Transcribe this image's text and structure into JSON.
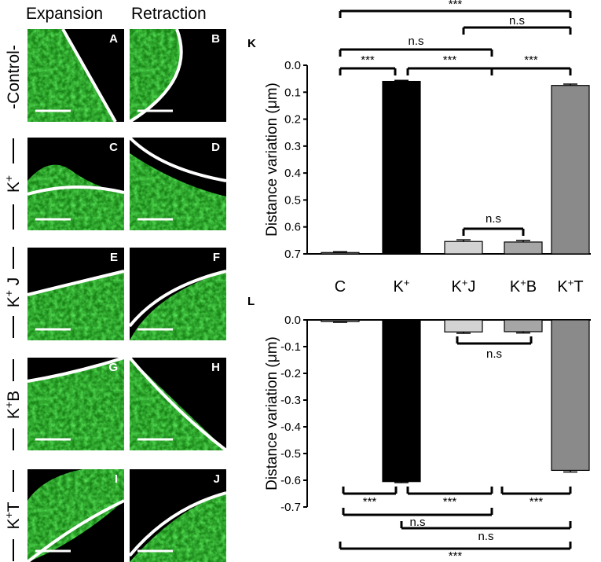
{
  "headers": {
    "expansion": "Expansion",
    "retraction": "Retraction"
  },
  "rows": [
    {
      "label": "-Control-",
      "panels": [
        "A",
        "B"
      ]
    },
    {
      "label": "K+",
      "panels": [
        "C",
        "D"
      ]
    },
    {
      "label": "K+J",
      "panels": [
        "E",
        "F"
      ]
    },
    {
      "label": "K+B",
      "panels": [
        "G",
        "H"
      ]
    },
    {
      "label": "K+T",
      "panels": [
        "I",
        "J"
      ]
    }
  ],
  "colors": {
    "micrograph_bg": "#000000",
    "fluorescence": "#22c21f",
    "membrane_line": "#ffffff"
  },
  "chart_data": [
    {
      "type": "bar",
      "panel": "K",
      "ylabel": "Distance variation (μm)",
      "ylim": [
        0,
        0.7
      ],
      "yticks": [
        "0.0",
        "0.1",
        "0.2",
        "0.3",
        "0.4",
        "0.5",
        "0.6",
        "0.7"
      ],
      "categories": [
        "C",
        "K+",
        "K+J",
        "K+B",
        "K+T"
      ],
      "values": [
        0.005,
        0.64,
        0.046,
        0.044,
        0.625
      ],
      "errors": [
        0.003,
        0.004,
        0.006,
        0.006,
        0.005
      ],
      "bar_colors": [
        "#9a9a9a",
        "#000000",
        "#d3d3d3",
        "#a6a6a6",
        "#8a8a8a"
      ],
      "significance": [
        {
          "from": 0,
          "to": 4,
          "label": "***"
        },
        {
          "from": 2,
          "to": 4,
          "label": "n.s"
        },
        {
          "from": 0,
          "to": 3,
          "label": "n.s"
        },
        {
          "from": 0,
          "to": 1,
          "label": "***"
        },
        {
          "from": 1,
          "to": 3,
          "label": "***"
        },
        {
          "from": 3,
          "to": 4,
          "label": "***"
        },
        {
          "from": 2,
          "to": 3,
          "label": "n.s"
        }
      ]
    },
    {
      "type": "bar",
      "panel": "L",
      "ylabel": "Distance variation (μm)",
      "ylim": [
        -0.7,
        0
      ],
      "yticks": [
        "0.0",
        "-0.1",
        "-0.2",
        "-0.3",
        "-0.4",
        "-0.5",
        "-0.6",
        "-0.7"
      ],
      "categories": [
        "C",
        "K+",
        "K+J",
        "K+B",
        "K+T"
      ],
      "values": [
        -0.006,
        -0.605,
        -0.045,
        -0.044,
        -0.563
      ],
      "errors": [
        0.003,
        0.004,
        0.005,
        0.005,
        0.006
      ],
      "bar_colors": [
        "#9a9a9a",
        "#000000",
        "#d3d3d3",
        "#a6a6a6",
        "#8a8a8a"
      ],
      "significance": [
        {
          "from": 2,
          "to": 3,
          "label": "n.s"
        },
        {
          "from": 0,
          "to": 1,
          "label": "***"
        },
        {
          "from": 1,
          "to": 3,
          "label": "***"
        },
        {
          "from": 3,
          "to": 4,
          "label": "***"
        },
        {
          "from": 0,
          "to": 3,
          "label": "n.s"
        },
        {
          "from": 1,
          "to": 4,
          "label": "n.s"
        },
        {
          "from": 0,
          "to": 4,
          "label": "***"
        }
      ]
    }
  ]
}
